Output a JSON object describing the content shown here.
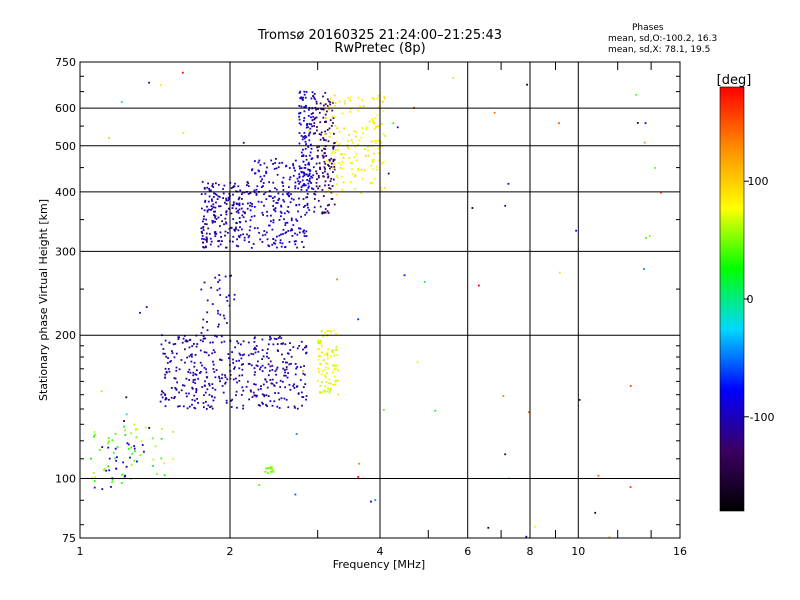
{
  "header": {
    "title_line1": "Tromsø 20160325 21:24:00–21:25:43",
    "title_line2": "RwPretec (8p)"
  },
  "stats": {
    "heading": "Phases",
    "o_line": "mean, sd,O:-100.2, 16.3",
    "x_line": "mean, sd,X:  78.1, 19.5"
  },
  "chart_data": {
    "type": "scatter",
    "xlabel": "Frequency [MHz]",
    "ylabel": "Stationary phase Virtual Height [km]",
    "x_scale": "log",
    "y_scale": "log",
    "xlim": [
      1,
      16
    ],
    "ylim": [
      75,
      750
    ],
    "x_ticks": [
      1,
      2,
      4,
      6,
      8,
      10,
      16
    ],
    "x_tick_labels": [
      "1",
      "2",
      "4",
      "6",
      "8",
      "10",
      "16"
    ],
    "x_minor_ticks": [
      3,
      5,
      7,
      9,
      12,
      14
    ],
    "y_ticks": [
      75,
      100,
      200,
      300,
      400,
      500,
      600,
      750
    ],
    "y_tick_labels": [
      "75",
      "100",
      "200",
      "300",
      "400",
      "500",
      "600",
      "750"
    ],
    "grid": true,
    "colorbar": {
      "label": "[deg]",
      "range": [
        -180,
        180
      ],
      "ticks": [
        100,
        0,
        -100
      ],
      "tick_labels": [
        "100",
        "0",
        "-100"
      ],
      "colors": [
        "#000000",
        "#3c0064",
        "#0000ff",
        "#00d8ff",
        "#00ff00",
        "#ffff00",
        "#ff8c00",
        "#ff0000"
      ]
    },
    "clusters": [
      {
        "name": "O-lower",
        "f": [
          1.45,
          2.85
        ],
        "h": [
          140,
          200
        ],
        "n": 420,
        "phase": [
          -120,
          -95
        ]
      },
      {
        "name": "O-lower-gap",
        "f": [
          1.75,
          2.05
        ],
        "h": [
          200,
          270
        ],
        "n": 35,
        "phase": [
          -110,
          -100
        ]
      },
      {
        "name": "O-F2-left",
        "f": [
          1.75,
          2.2
        ],
        "h": [
          305,
          420
        ],
        "n": 220,
        "phase": [
          -120,
          -95
        ]
      },
      {
        "name": "O-F2-trace",
        "f": [
          2.2,
          2.9
        ],
        "h": [
          305,
          470
        ],
        "n": 230,
        "phase": [
          -105,
          -90
        ]
      },
      {
        "name": "O-F2-cusp",
        "f": [
          2.75,
          2.95
        ],
        "h": [
          400,
          650
        ],
        "n": 120,
        "phase": [
          -100,
          -88
        ]
      },
      {
        "name": "O-F2-upper",
        "f": [
          2.95,
          3.25
        ],
        "h": [
          360,
          650
        ],
        "n": 150,
        "phase": [
          -140,
          -115
        ]
      },
      {
        "name": "X-F2",
        "f": [
          3.1,
          4.1
        ],
        "h": [
          390,
          640
        ],
        "n": 160,
        "phase": [
          70,
          100
        ]
      },
      {
        "name": "X-lower",
        "f": [
          3.0,
          3.3
        ],
        "h": [
          150,
          205
        ],
        "n": 95,
        "phase": [
          60,
          90
        ]
      },
      {
        "name": "E-low",
        "f": [
          1.05,
          1.55
        ],
        "h": [
          97,
          130
        ],
        "n": 55,
        "phase": [
          20,
          70
        ]
      },
      {
        "name": "E-low-blue",
        "f": [
          1.1,
          1.35
        ],
        "h": [
          95,
          120
        ],
        "n": 25,
        "phase": [
          -110,
          -90
        ]
      },
      {
        "name": "X-small",
        "f": [
          2.35,
          2.45
        ],
        "h": [
          102,
          106
        ],
        "n": 14,
        "phase": [
          40,
          60
        ]
      },
      {
        "name": "noise",
        "f": [
          1.0,
          16.0
        ],
        "h": [
          75,
          750
        ],
        "n": 70,
        "phase": [
          -180,
          180
        ]
      }
    ]
  }
}
